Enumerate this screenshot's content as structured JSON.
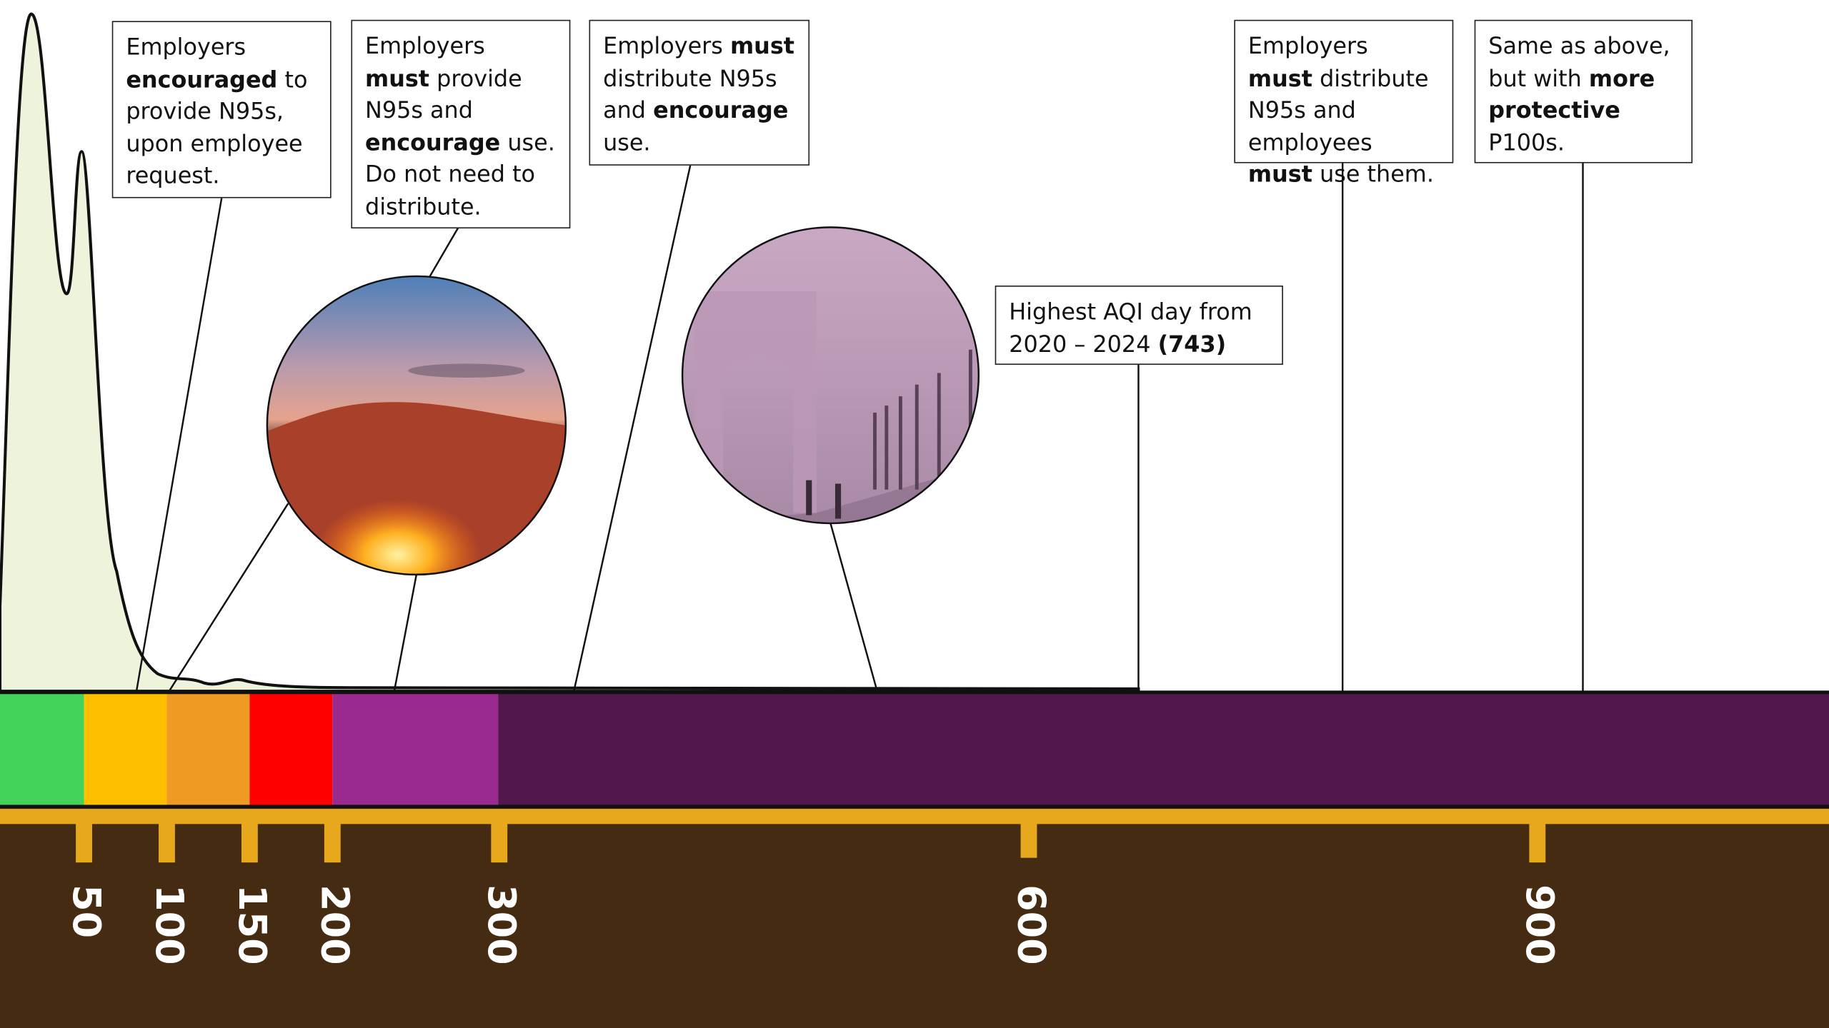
{
  "notes": [
    {
      "parts": [
        {
          "text": "Employers "
        },
        {
          "text": "encouraged",
          "bold": true
        },
        {
          "text": " to provide N95s, upon employee request."
        }
      ]
    },
    {
      "parts": [
        {
          "text": "Employers "
        },
        {
          "text": "must",
          "bold": true
        },
        {
          "text": " provide N95s and "
        },
        {
          "text": "encourage",
          "bold": true
        },
        {
          "text": " use. Do not need to distribute."
        }
      ]
    },
    {
      "parts": [
        {
          "text": "Employers "
        },
        {
          "text": "must",
          "bold": true
        },
        {
          "text": " distribute N95s and "
        },
        {
          "text": "encourage",
          "bold": true
        },
        {
          "text": " use."
        }
      ]
    },
    {
      "parts": [
        {
          "text": "Highest AQI day from 2020 – 2024 "
        },
        {
          "text": "(743)",
          "bold": true
        }
      ]
    },
    {
      "parts": [
        {
          "text": "Employers "
        },
        {
          "text": "must",
          "bold": true
        },
        {
          "text": " distribute N95s and employees "
        },
        {
          "text": "must",
          "bold": true
        },
        {
          "text": " use them."
        }
      ]
    },
    {
      "parts": [
        {
          "text": "Same as above, but with "
        },
        {
          "text": "more protective",
          "bold": true
        },
        {
          "text": " P100s."
        }
      ]
    }
  ],
  "scale": {
    "ticks": [
      "50",
      "100",
      "150",
      "200",
      "300",
      "600",
      "900"
    ],
    "band_colors": [
      "#43d35a",
      "#fdbf00",
      "#ee9a23",
      "#fd0000",
      "#9b2a8e",
      "#52174b"
    ]
  }
}
